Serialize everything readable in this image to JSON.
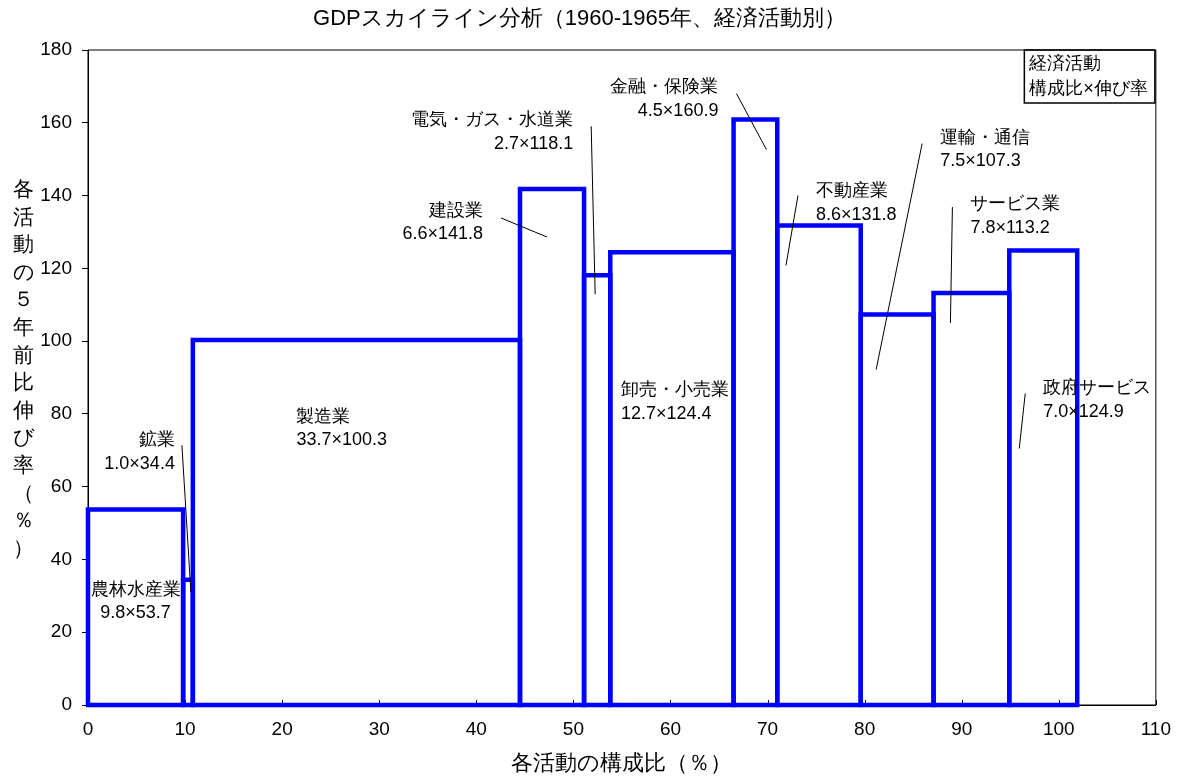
{
  "chart_data": {
    "type": "histogram",
    "title": "GDPスカイライン分析（1960-1965年、経済活動別）",
    "xlabel": "各活動の構成比（％）",
    "ylabel": "各活動の５年前比伸び率（％）",
    "bins": [
      0,
      9.8,
      10.8,
      44.5,
      51.1,
      53.8,
      66.5,
      71.0,
      79.6,
      87.1,
      94.9,
      101.9
    ],
    "values": [
      53.7,
      34.4,
      100.3,
      141.8,
      118.1,
      124.4,
      160.9,
      131.8,
      107.3,
      113.2,
      124.9
    ],
    "color": "#0000ff",
    "xlim": [
      0,
      110
    ],
    "xticks": [
      0,
      10,
      20,
      30,
      40,
      50,
      60,
      70,
      80,
      90,
      100,
      110
    ],
    "ylim": [
      0,
      180
    ],
    "yticks": [
      0,
      20,
      40,
      60,
      80,
      100,
      120,
      140,
      160,
      180
    ],
    "annotations": [
      "農林水産業\n9.8×53.7",
      {
        "text": "鉱業\n1.0×34.4",
        "x": 10.6,
        "y": 31
      },
      "製造業\n33.7×100.3",
      "建設業\n6.6×141.8",
      "電気・ガス・水道業\n2.7×118.1",
      "卸売・小売業\n12.7×124.4",
      "金融・保険業\n4.5×160.9",
      "不動産業\n8.6×131.8",
      "運輸・通信\n7.5×107.3",
      "サービス業\n7.8×113.2",
      "政府サービス\n7.0×124.9",
      "経済活動",
      "構成比×伸び率"
    ]
  }
}
